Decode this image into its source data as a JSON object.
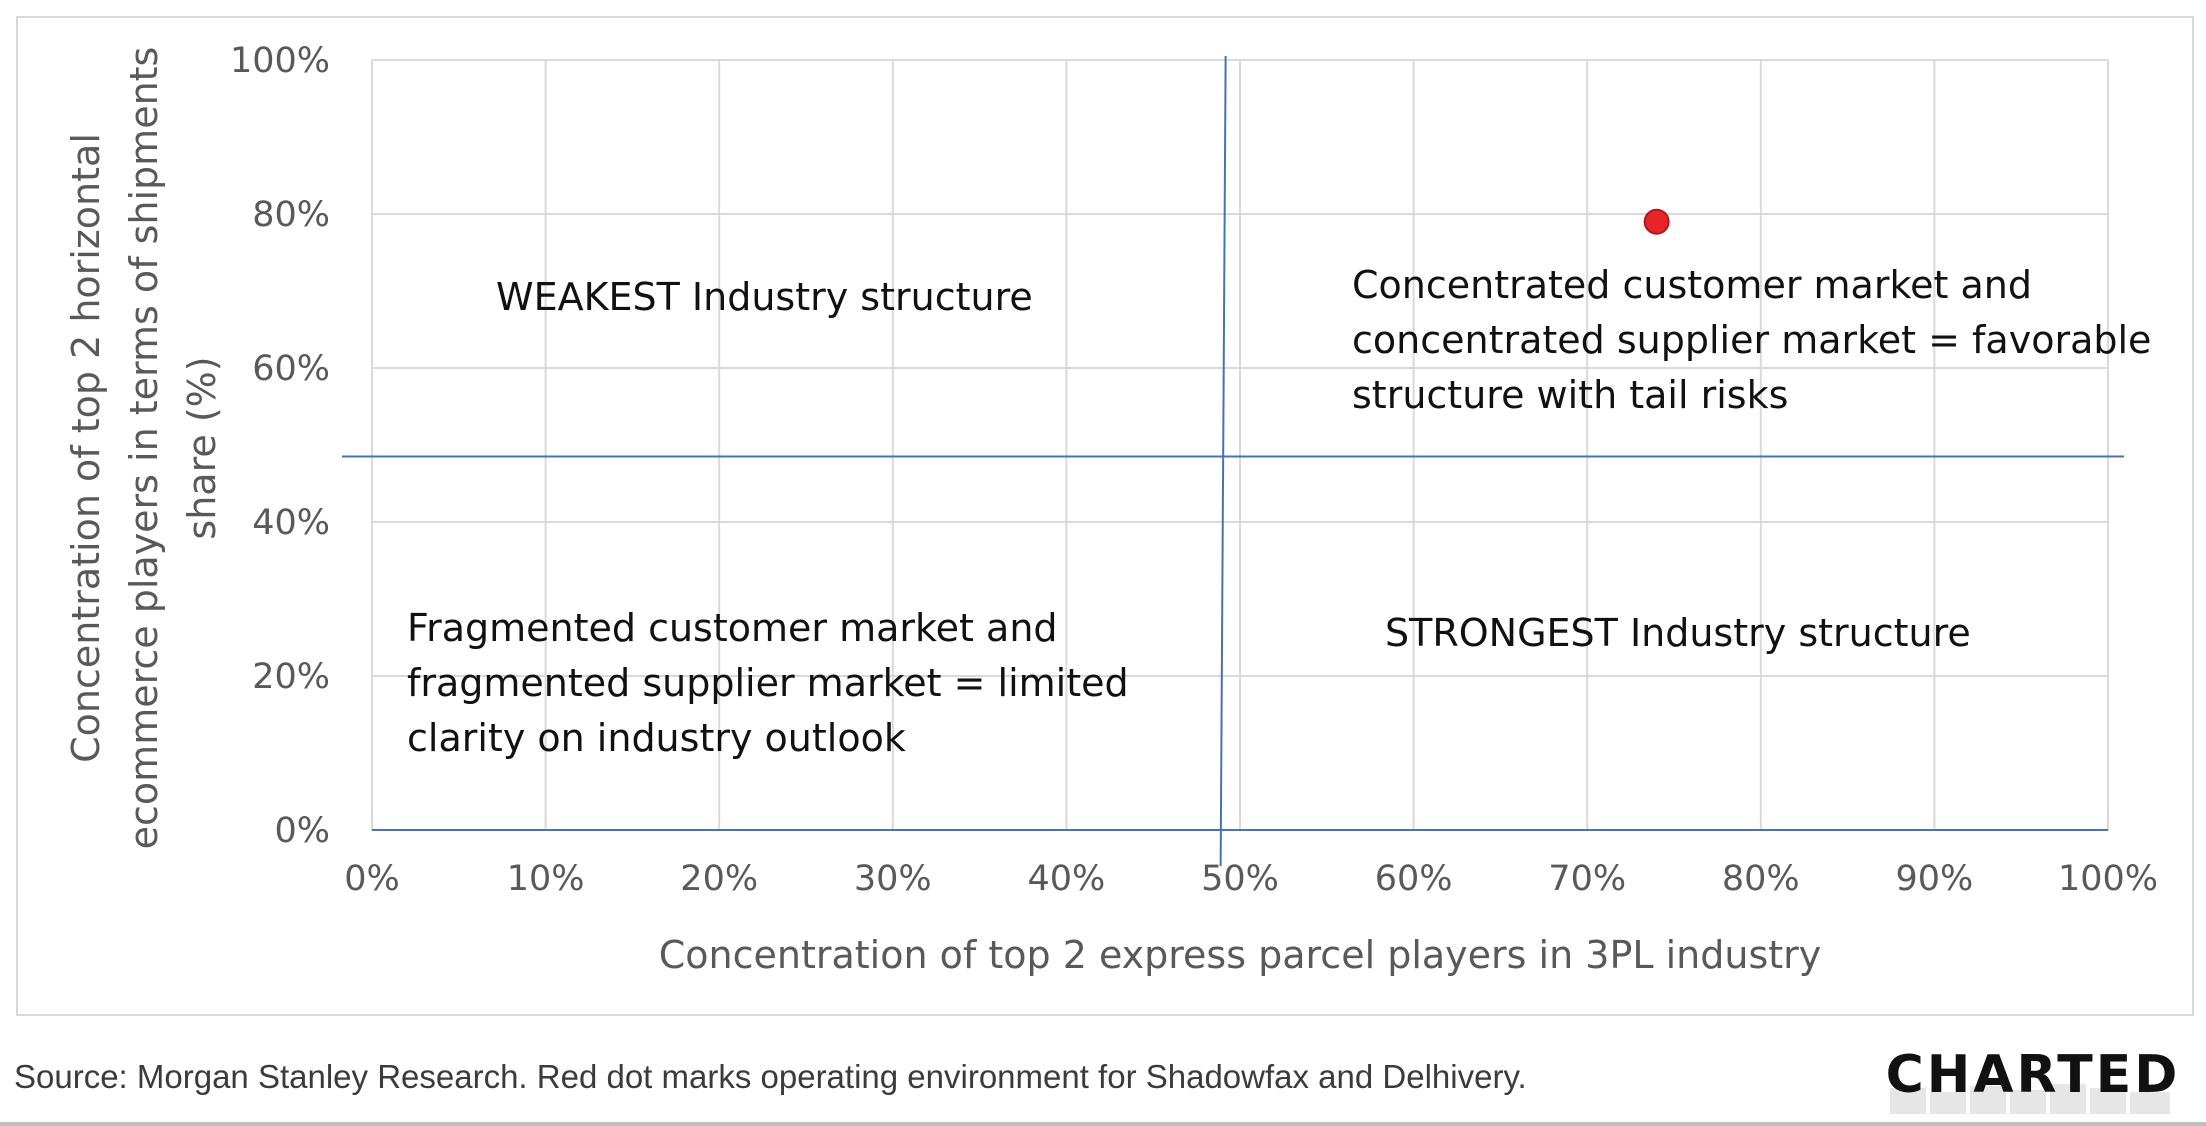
{
  "chart_data": {
    "type": "scatter",
    "x": [
      74
    ],
    "y": [
      79
    ],
    "point_color": "#e8242b",
    "xlabel": "Concentration of top 2 express parcel players in 3PL industry",
    "ylabel": [
      "Concentration of top 2 horizontal",
      "ecommerce players in terms of shipments",
      "share (%)"
    ],
    "xlim": [
      0,
      100
    ],
    "ylim": [
      0,
      100
    ],
    "x_ticks": [
      "0%",
      "10%",
      "20%",
      "30%",
      "40%",
      "50%",
      "60%",
      "70%",
      "80%",
      "90%",
      "100%"
    ],
    "y_ticks": [
      "0%",
      "20%",
      "40%",
      "60%",
      "80%",
      "100%"
    ],
    "grid": true,
    "divider_x": 49,
    "divider_y": 48.5,
    "divider_color": "#4a72b0",
    "quadrant_labels": {
      "top_left": [
        "WEAKEST Industry structure"
      ],
      "top_right": [
        "Concentrated customer market and",
        "concentrated supplier market = favorable",
        "structure with tail risks"
      ],
      "bottom_left": [
        "Fragmented customer market and",
        "fragmented supplier market = limited",
        "clarity on industry outlook"
      ],
      "bottom_right": [
        "STRONGEST Industry structure"
      ]
    }
  },
  "source_note": "Source: Morgan Stanley Research. Red dot marks operating environment for Shadowfax and Delhivery.",
  "logo_text": "CHARTED"
}
